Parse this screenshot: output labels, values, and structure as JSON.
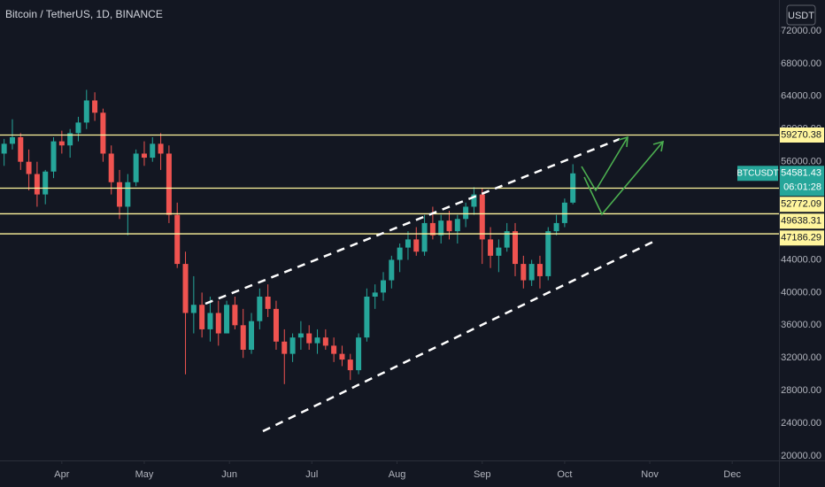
{
  "chart_data": {
    "type": "candlestick",
    "title": "Bitcoin / TetherUS, 1D, BINANCE",
    "currency": "USDT",
    "up_color": "#26a69a",
    "down_color": "#ef5350",
    "series": [
      {
        "name": "BTCUSDT",
        "open": [
          57000,
          58200,
          59000,
          56000,
          54500,
          52000,
          54800,
          58500,
          58000,
          59500,
          60800,
          63500,
          62000,
          57000,
          53500,
          50500,
          53500,
          57000,
          56500,
          58200,
          57000,
          49500,
          43500,
          37500,
          38500,
          35500,
          37500,
          35000,
          38500,
          36000,
          33000,
          36500,
          39500,
          38000,
          34000,
          32500,
          34500,
          35000,
          33800,
          34500,
          33500,
          32500,
          31800,
          30500,
          34500,
          39500,
          40000,
          41500,
          44000,
          45500,
          46500,
          45000,
          48500,
          47000,
          48800,
          47500,
          49000,
          50500,
          52000,
          46500,
          44500,
          45500,
          47500,
          43500,
          41500,
          43500,
          42000,
          47500,
          48500,
          51000
        ],
        "high": [
          58800,
          61200,
          59500,
          57500,
          56000,
          55000,
          59000,
          59800,
          60000,
          61500,
          64800,
          64500,
          62500,
          58000,
          55000,
          54500,
          57500,
          58500,
          59000,
          59500,
          58000,
          51000,
          45000,
          42000,
          40000,
          39500,
          39000,
          39000,
          39500,
          38000,
          37500,
          40500,
          41000,
          39000,
          35500,
          35000,
          36500,
          36000,
          35500,
          35500,
          34500,
          33500,
          32500,
          35000,
          40500,
          41000,
          42500,
          44500,
          46000,
          47500,
          48000,
          49500,
          50500,
          49500,
          50000,
          49500,
          51000,
          52900,
          52800,
          48000,
          46500,
          48500,
          48500,
          44500,
          44000,
          44500,
          48000,
          49500,
          51500,
          55700
        ],
        "low": [
          55500,
          57500,
          55000,
          52500,
          50500,
          50800,
          54000,
          57000,
          56500,
          58500,
          60000,
          61000,
          56000,
          52000,
          49000,
          47000,
          53000,
          55500,
          56000,
          55000,
          48500,
          43000,
          30000,
          35000,
          34500,
          34000,
          33500,
          35000,
          35500,
          32000,
          32500,
          35500,
          37000,
          33000,
          28800,
          31500,
          33000,
          33000,
          32500,
          33000,
          31500,
          31000,
          29300,
          30000,
          34000,
          38000,
          39000,
          40500,
          42500,
          44000,
          44500,
          44500,
          46500,
          46000,
          46500,
          46000,
          48000,
          49500,
          43500,
          43000,
          42500,
          45000,
          42000,
          40500,
          40800,
          40500,
          41500,
          47000,
          48000,
          50800
        ],
        "close": [
          58200,
          59000,
          56000,
          54500,
          52000,
          54800,
          58500,
          58000,
          59500,
          60800,
          63500,
          62000,
          57000,
          53500,
          50500,
          53500,
          57000,
          56500,
          58200,
          57000,
          49500,
          43500,
          37500,
          38500,
          35500,
          37500,
          35000,
          38500,
          36000,
          33000,
          36500,
          39500,
          38000,
          34000,
          32500,
          34500,
          35000,
          33800,
          34500,
          33500,
          32500,
          31800,
          30500,
          34500,
          39500,
          40000,
          41500,
          44000,
          45500,
          46500,
          45000,
          48500,
          47000,
          48800,
          47500,
          49000,
          50500,
          52000,
          46500,
          44500,
          45500,
          47500,
          43500,
          41500,
          43500,
          42000,
          47500,
          48500,
          51000,
          54581.43
        ]
      }
    ],
    "countdown": "06:01:28",
    "levels": [
      59270.38,
      52772.09,
      49638.31,
      47186.29
    ],
    "level_color": "#fff59d",
    "xlim": [
      -0.5,
      94
    ],
    "xticks": [
      {
        "value": 7,
        "label": "Apr"
      },
      {
        "value": 17,
        "label": "May"
      },
      {
        "value": 27.33,
        "label": "Jun"
      },
      {
        "value": 37.33,
        "label": "Jul"
      },
      {
        "value": 47.67,
        "label": "Aug"
      },
      {
        "value": 58,
        "label": "Sep"
      },
      {
        "value": 68,
        "label": "Oct"
      },
      {
        "value": 78.33,
        "label": "Nov"
      },
      {
        "value": 88.33,
        "label": "Dec"
      }
    ],
    "ylim": [
      19460,
      75790
    ],
    "yticks": [
      {
        "value": 20000,
        "label": "20000.00"
      },
      {
        "value": 24000,
        "label": "24000.00"
      },
      {
        "value": 28000,
        "label": "28000.00"
      },
      {
        "value": 32000,
        "label": "32000.00"
      },
      {
        "value": 36000,
        "label": "36000.00"
      },
      {
        "value": 40000,
        "label": "40000.00"
      },
      {
        "value": 44000,
        "label": "44000.00"
      },
      {
        "value": 56000,
        "label": "56000.00"
      },
      {
        "value": 60000,
        "label": "60000.00"
      },
      {
        "value": 64000,
        "label": "64000.00"
      },
      {
        "value": 68000,
        "label": "68000.00"
      },
      {
        "value": 72000,
        "label": "72000.00"
      }
    ]
  }
}
